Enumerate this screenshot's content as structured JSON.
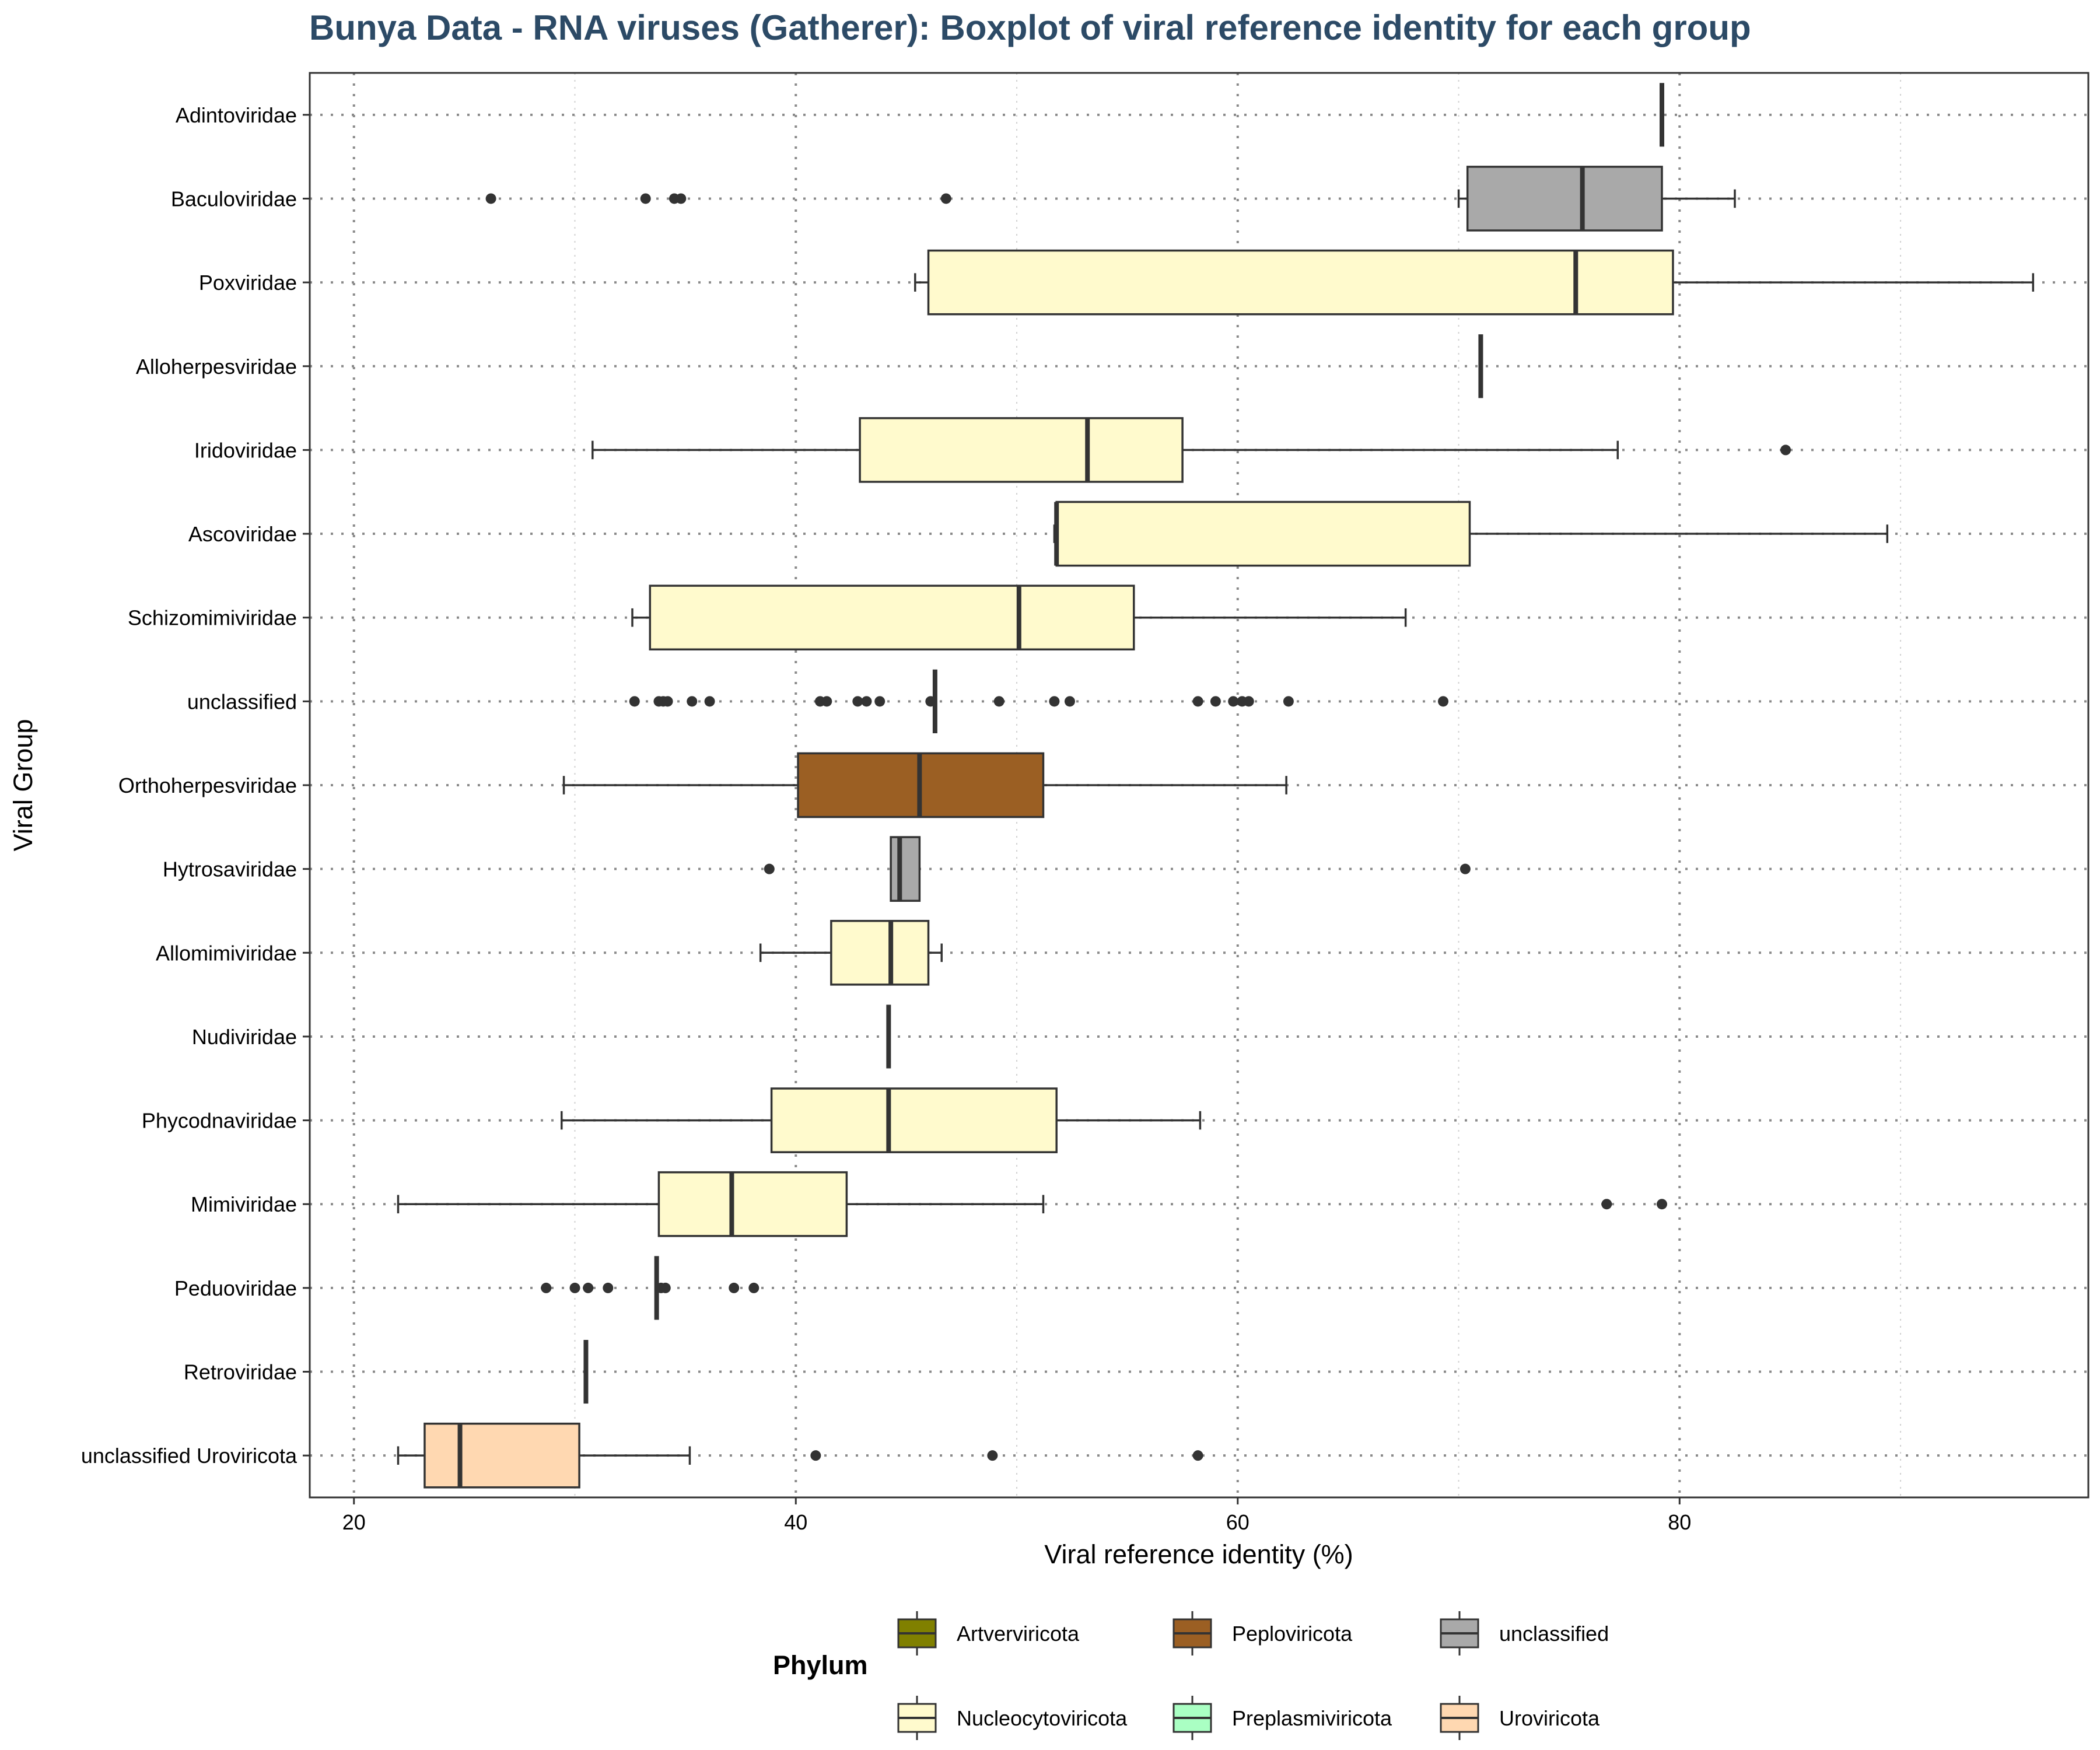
{
  "chart_data": {
    "type": "boxplot",
    "title": "Bunya Data - RNA viruses (Gatherer): Boxplot of viral reference identity for each group",
    "xlabel": "Viral reference identity (%)",
    "ylabel": "Viral Group",
    "xlim": [
      18,
      98.5
    ],
    "x_ticks": [
      20,
      40,
      60,
      80
    ],
    "x_minor_ticks": [
      30,
      50,
      70,
      90
    ],
    "grid": true,
    "orientation": "horizontal",
    "legend": {
      "title": "Phylum",
      "placement": "bottom",
      "entries": [
        {
          "name": "Artverviricota",
          "color": "#808000"
        },
        {
          "name": "Peploviricota",
          "color": "#9b5f23"
        },
        {
          "name": "unclassified",
          "color": "#a9a9a9"
        },
        {
          "name": "Nucleocytoviricota",
          "color": "#fffacd"
        },
        {
          "name": "Preplasmiviricota",
          "color": "#aaffc3"
        },
        {
          "name": "Uroviricota",
          "color": "#ffd8b1"
        }
      ]
    },
    "series": [
      {
        "group": "Adintoviridae",
        "phylum": "unclassified",
        "color": "#a9a9a9",
        "whisker_low": 79.2,
        "q1": 79.2,
        "median": 79.2,
        "q3": 79.2,
        "whisker_high": 79.2,
        "outliers": []
      },
      {
        "group": "Baculoviridae",
        "phylum": "unclassified",
        "color": "#a9a9a9",
        "whisker_low": 70.0,
        "q1": 70.4,
        "median": 75.6,
        "q3": 79.2,
        "whisker_high": 82.5,
        "outliers": [
          26.2,
          33.2,
          34.5,
          34.8,
          46.8
        ]
      },
      {
        "group": "Poxviridae",
        "phylum": "Nucleocytoviricota",
        "color": "#fffacd",
        "whisker_low": 45.4,
        "q1": 46.0,
        "median": 75.3,
        "q3": 79.7,
        "whisker_high": 96.0,
        "outliers": []
      },
      {
        "group": "Alloherpesviridae",
        "phylum": "Peploviricota",
        "color": "#9b5f23",
        "whisker_low": 71.0,
        "q1": 71.0,
        "median": 71.0,
        "q3": 71.0,
        "whisker_high": 71.0,
        "outliers": []
      },
      {
        "group": "Iridoviridae",
        "phylum": "Nucleocytoviricota",
        "color": "#fffacd",
        "whisker_low": 30.8,
        "q1": 42.9,
        "median": 53.2,
        "q3": 57.5,
        "whisker_high": 77.2,
        "outliers": [
          84.8
        ]
      },
      {
        "group": "Ascoviridae",
        "phylum": "Nucleocytoviricota",
        "color": "#fffacd",
        "whisker_low": 51.7,
        "q1": 51.8,
        "median": 51.8,
        "q3": 70.5,
        "whisker_high": 89.4,
        "outliers": []
      },
      {
        "group": "Schizomimiviridae",
        "phylum": "Nucleocytoviricota",
        "color": "#fffacd",
        "whisker_low": 32.6,
        "q1": 33.4,
        "median": 50.1,
        "q3": 55.3,
        "whisker_high": 67.6,
        "outliers": []
      },
      {
        "group": "unclassified",
        "phylum": "unclassified",
        "color": "#a9a9a9",
        "whisker_low": 46.3,
        "q1": 46.3,
        "median": 46.3,
        "q3": 46.3,
        "whisker_high": 46.3,
        "outliers": [
          32.7,
          33.8,
          34.0,
          34.2,
          35.3,
          36.1,
          41.1,
          41.4,
          42.8,
          43.2,
          43.8,
          46.1,
          49.2,
          51.7,
          52.4,
          58.2,
          59.0,
          59.8,
          60.2,
          60.5,
          62.3,
          69.3
        ]
      },
      {
        "group": "Orthoherpesviridae",
        "phylum": "Peploviricota",
        "color": "#9b5f23",
        "whisker_low": 29.5,
        "q1": 40.1,
        "median": 45.6,
        "q3": 51.2,
        "whisker_high": 62.2,
        "outliers": []
      },
      {
        "group": "Hytrosaviridae",
        "phylum": "unclassified",
        "color": "#a9a9a9",
        "whisker_low": 44.3,
        "q1": 44.3,
        "median": 44.7,
        "q3": 45.6,
        "whisker_high": 45.6,
        "outliers": [
          38.8,
          70.3
        ]
      },
      {
        "group": "Allomimiviridae",
        "phylum": "Nucleocytoviricota",
        "color": "#fffacd",
        "whisker_low": 38.4,
        "q1": 41.6,
        "median": 44.3,
        "q3": 46.0,
        "whisker_high": 46.6,
        "outliers": []
      },
      {
        "group": "Nudiviridae",
        "phylum": "Nucleocytoviricota",
        "color": "#fffacd",
        "whisker_low": 44.2,
        "q1": 44.2,
        "median": 44.2,
        "q3": 44.2,
        "whisker_high": 44.2,
        "outliers": []
      },
      {
        "group": "Phycodnaviridae",
        "phylum": "Nucleocytoviricota",
        "color": "#fffacd",
        "whisker_low": 29.4,
        "q1": 38.9,
        "median": 44.2,
        "q3": 51.8,
        "whisker_high": 58.3,
        "outliers": []
      },
      {
        "group": "Mimiviridae",
        "phylum": "Nucleocytoviricota",
        "color": "#fffacd",
        "whisker_low": 22.0,
        "q1": 33.8,
        "median": 37.1,
        "q3": 42.3,
        "whisker_high": 51.2,
        "outliers": [
          76.7,
          79.2
        ]
      },
      {
        "group": "Peduoviridae",
        "phylum": "Uroviricota",
        "color": "#ffd8b1",
        "whisker_low": 33.7,
        "q1": 33.7,
        "median": 33.7,
        "q3": 33.7,
        "whisker_high": 33.7,
        "outliers": [
          28.7,
          30.0,
          30.6,
          31.5,
          33.9,
          34.1,
          37.2,
          38.1
        ]
      },
      {
        "group": "Retroviridae",
        "phylum": "Artverviricota",
        "color": "#808000",
        "whisker_low": 30.5,
        "q1": 30.5,
        "median": 30.5,
        "q3": 30.5,
        "whisker_high": 30.5,
        "outliers": []
      },
      {
        "group": "unclassified Uroviricota",
        "phylum": "Uroviricota",
        "color": "#ffd8b1",
        "whisker_low": 22.0,
        "q1": 23.2,
        "median": 24.8,
        "q3": 30.2,
        "whisker_high": 35.2,
        "outliers": [
          40.9,
          48.9,
          58.2
        ]
      }
    ]
  }
}
